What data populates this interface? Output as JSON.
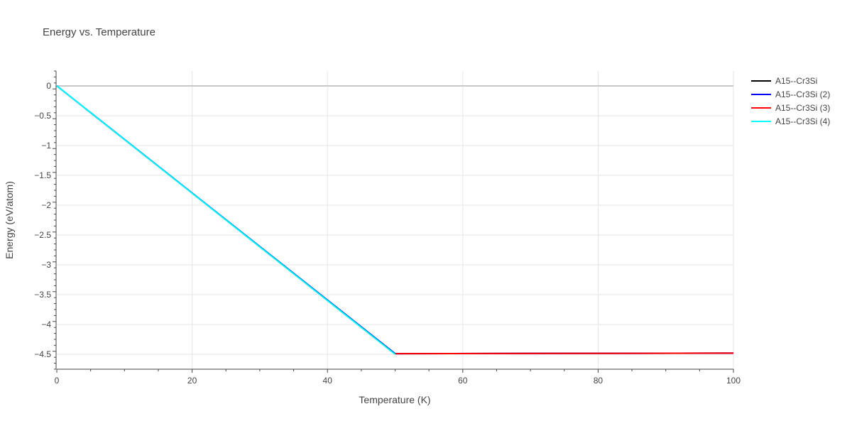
{
  "chart_data": {
    "type": "line",
    "title": "Energy vs. Temperature",
    "xlabel": "Temperature (K)",
    "ylabel": "Energy (eV/atom)",
    "xlim": [
      0,
      100
    ],
    "ylim": [
      -4.75,
      0.25
    ],
    "x_ticks": [
      0,
      20,
      40,
      60,
      80,
      100
    ],
    "x_tick_labels": [
      "0",
      "20",
      "40",
      "60",
      "80",
      "100"
    ],
    "y_ticks": [
      0,
      -0.5,
      -1,
      -1.5,
      -2,
      -2.5,
      -3,
      -3.5,
      -4,
      -4.5
    ],
    "y_tick_labels": [
      "0",
      "−0.5",
      "−1",
      "−1.5",
      "−2",
      "−2.5",
      "−3",
      "−3.5",
      "−4",
      "−4.5"
    ],
    "grid": true,
    "legend_position": "top-right",
    "series": [
      {
        "name": "A15--Cr3Si",
        "color": "#000000",
        "points": [
          [
            0,
            0
          ],
          [
            50,
            -4.49
          ],
          [
            100,
            -4.48
          ]
        ]
      },
      {
        "name": "A15--Cr3Si (2)",
        "color": "#0000ff",
        "points": [
          [
            0,
            0
          ],
          [
            50,
            -4.49
          ],
          [
            100,
            -4.48
          ]
        ]
      },
      {
        "name": "A15--Cr3Si (3)",
        "color": "#ff0000",
        "points": [
          [
            50,
            -4.49
          ],
          [
            100,
            -4.48
          ]
        ]
      },
      {
        "name": "A15--Cr3Si (4)",
        "color": "#00ffff",
        "points": [
          [
            0,
            0
          ],
          [
            50,
            -4.5
          ]
        ]
      }
    ]
  }
}
